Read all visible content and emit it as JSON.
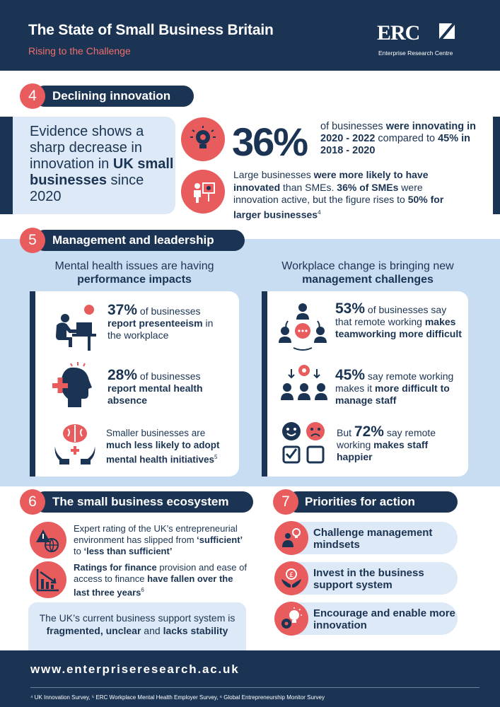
{
  "header": {
    "title": "The State of Small Business Britain",
    "subtitle": "Rising to the Challenge",
    "logo_text": "ERC",
    "logo_caption": "Enterprise Research Centre"
  },
  "s4": {
    "number": "4",
    "title": "Declining innovation",
    "evidence_a": "Evidence shows a sharp decrease in innovation in ",
    "evidence_b": "UK small businesses",
    "evidence_c": " since 2020",
    "big_stat": "36%",
    "stat1_a": "of businesses ",
    "stat1_b": "were innovating in 2020 - 2022",
    "stat1_c": " compared to ",
    "stat1_d": "45% in 2018 - 2020",
    "stat2_a": "Large businesses ",
    "stat2_b": "were more likely to have innovated",
    "stat2_c": " than SMEs. ",
    "stat2_d": "36% of SMEs",
    "stat2_e": " were innovation active, but the figure rises to ",
    "stat2_f": "50% for larger businesses",
    "stat2_note": "4"
  },
  "s5": {
    "number": "5",
    "title": "Management and leadership",
    "left_head_a": "Mental health issues are having ",
    "left_head_b": "performance impacts",
    "right_head_a": "Workplace change is bringing new ",
    "right_head_b": "management challenges",
    "l1_pct": "37%",
    "l1_a": " of businesses ",
    "l1_b": "report presenteeism",
    "l1_c": " in the workplace",
    "l2_pct": "28%",
    "l2_a": " of businesses ",
    "l2_b": "report mental health absence",
    "l3_a": "Smaller businesses are ",
    "l3_b": "much less likely to adopt mental health initiatives",
    "l3_note": "5",
    "r1_pct": "53%",
    "r1_a": " of businesses say that remote working ",
    "r1_b": "makes teamworking more difficult",
    "r2_pct": "45%",
    "r2_a": " say remote working makes it ",
    "r2_b": "more difficult to manage staff",
    "r3_a": "But ",
    "r3_pct": "72%",
    "r3_b": " say remote working ",
    "r3_c": "makes staff happier"
  },
  "s6": {
    "number": "6",
    "title": "The small business ecosystem",
    "item1_a": "Expert rating of the UK’s entrepreneurial environment has slipped from ",
    "item1_b": "‘sufficient’",
    "item1_c": " to ",
    "item1_d": "‘less than sufficient’",
    "item2_a": "Ratings for finance",
    "item2_b": " provision and ease of access to finance ",
    "item2_c": "have fallen over the last three years",
    "item2_note": "6",
    "box_a": "The UK’s current business support system is ",
    "box_b": "fragmented, unclear",
    "box_c": " and ",
    "box_d": "lacks stability"
  },
  "s7": {
    "number": "7",
    "title": "Priorities for action",
    "items": [
      "Challenge management mindsets",
      "Invest in the business support system",
      "Encourage and enable more innovation"
    ]
  },
  "footer": {
    "url": "www.enterpriseresearch.ac.uk",
    "notes": "⁴ UK Innovation Survey, ⁵ ERC Workplace Mental Health Employer Survey, ⁶ Global Entrepreneurship Monitor Survey"
  },
  "colors": {
    "navy": "#1b3453",
    "coral": "#e85c5e",
    "light_blue": "#c8ddf2",
    "pale_blue": "#dde9f6"
  },
  "icons": [
    "lightbulb-gear-icon",
    "presenter-icon",
    "desk-worker-icon",
    "head-medical-icon",
    "brain-hands-icon",
    "team-chat-icon",
    "team-gear-icon",
    "faces-checkbox-icon",
    "warning-globe-icon",
    "falling-chart-icon",
    "person-idea-icon",
    "hands-pound-icon",
    "gear-bulb-icon"
  ]
}
